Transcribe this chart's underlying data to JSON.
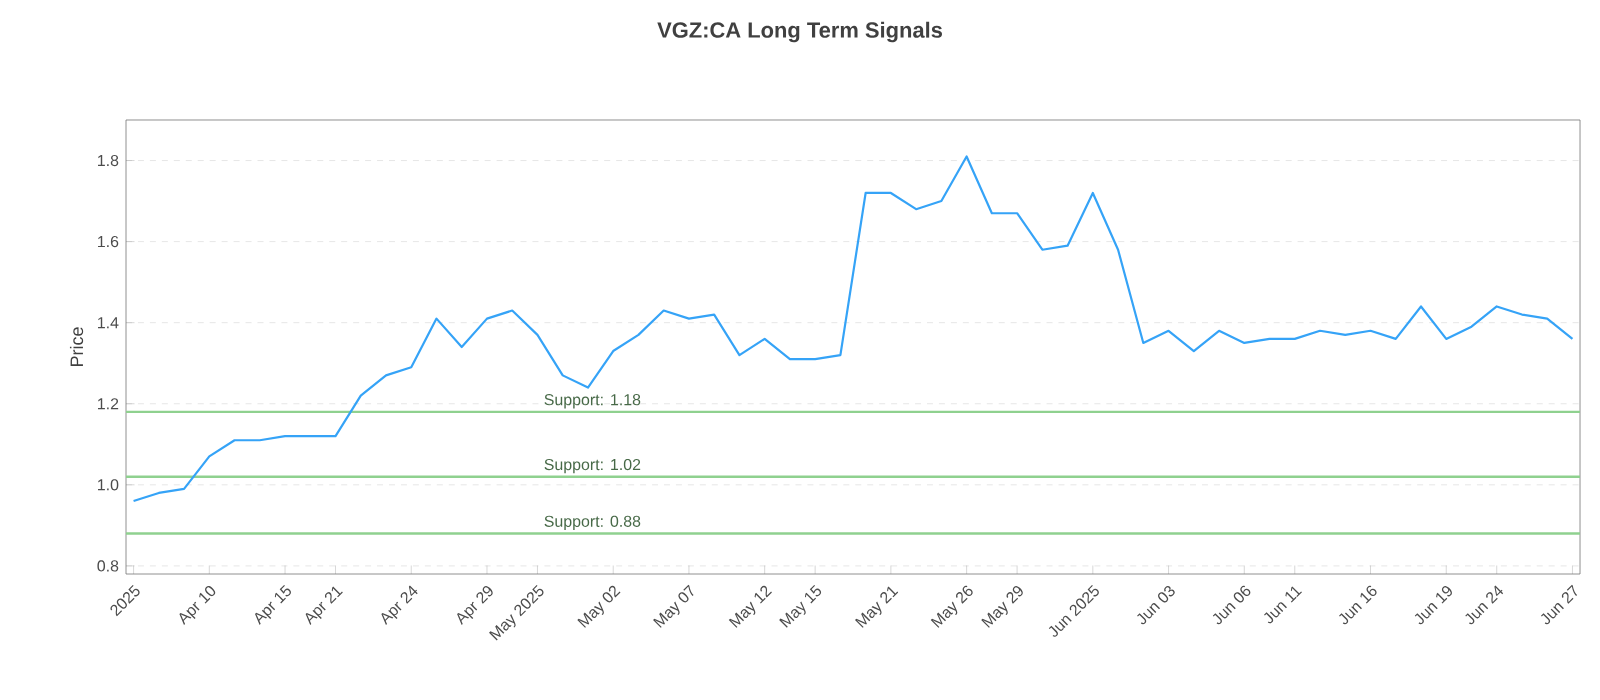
{
  "chart_data": {
    "type": "line",
    "title": "VGZ:CA Long Term Signals",
    "ylabel": "Price",
    "categories": [
      "2025",
      null,
      null,
      "Apr 10",
      null,
      null,
      "Apr 15",
      null,
      "Apr 21",
      null,
      null,
      "Apr 24",
      null,
      null,
      "Apr 29",
      null,
      "May 2025",
      null,
      null,
      "May 02",
      null,
      null,
      "May 07",
      null,
      null,
      "May 12",
      null,
      "May 15",
      null,
      null,
      "May 21",
      null,
      null,
      "May 26",
      null,
      "May 29",
      null,
      null,
      "Jun 2025",
      null,
      null,
      "Jun 03",
      null,
      null,
      "Jun 06",
      null,
      "Jun 11",
      null,
      null,
      "Jun 16",
      null,
      null,
      "Jun 19",
      null,
      "Jun 24",
      null,
      null,
      "Jun 27"
    ],
    "series": [
      {
        "color": "#35a3f7",
        "values": [
          0.96,
          0.98,
          0.99,
          1.07,
          1.11,
          1.11,
          1.12,
          1.12,
          1.12,
          1.22,
          1.27,
          1.29,
          1.41,
          1.34,
          1.41,
          1.43,
          1.37,
          1.27,
          1.24,
          1.33,
          1.37,
          1.43,
          1.41,
          1.42,
          1.32,
          1.36,
          1.31,
          1.31,
          1.32,
          1.72,
          1.72,
          1.68,
          1.7,
          1.81,
          1.67,
          1.67,
          1.58,
          1.59,
          1.72,
          1.58,
          1.35,
          1.38,
          1.33,
          1.38,
          1.35,
          1.36,
          1.36,
          1.38,
          1.37,
          1.38,
          1.36,
          1.44,
          1.36,
          1.39,
          1.44,
          1.42,
          1.41,
          1.36
        ]
      }
    ],
    "ylim": [
      0.78,
      1.9
    ],
    "yticks": [
      0.8,
      {
        "value": 1,
        "label": "1.0"
      },
      1.2,
      1.4,
      1.6,
      1.8
    ],
    "grid": "y",
    "ref_lines": [
      {
        "axis": "y",
        "value": 1.18,
        "label": "Support: 1.18",
        "color": "#8fd18f"
      },
      {
        "axis": "y",
        "value": 1.02,
        "label": "Support: 1.02",
        "color": "#8fd18f"
      },
      {
        "axis": "y",
        "value": 0.88,
        "label": "Support: 0.88",
        "color": "#8fd18f"
      }
    ]
  }
}
